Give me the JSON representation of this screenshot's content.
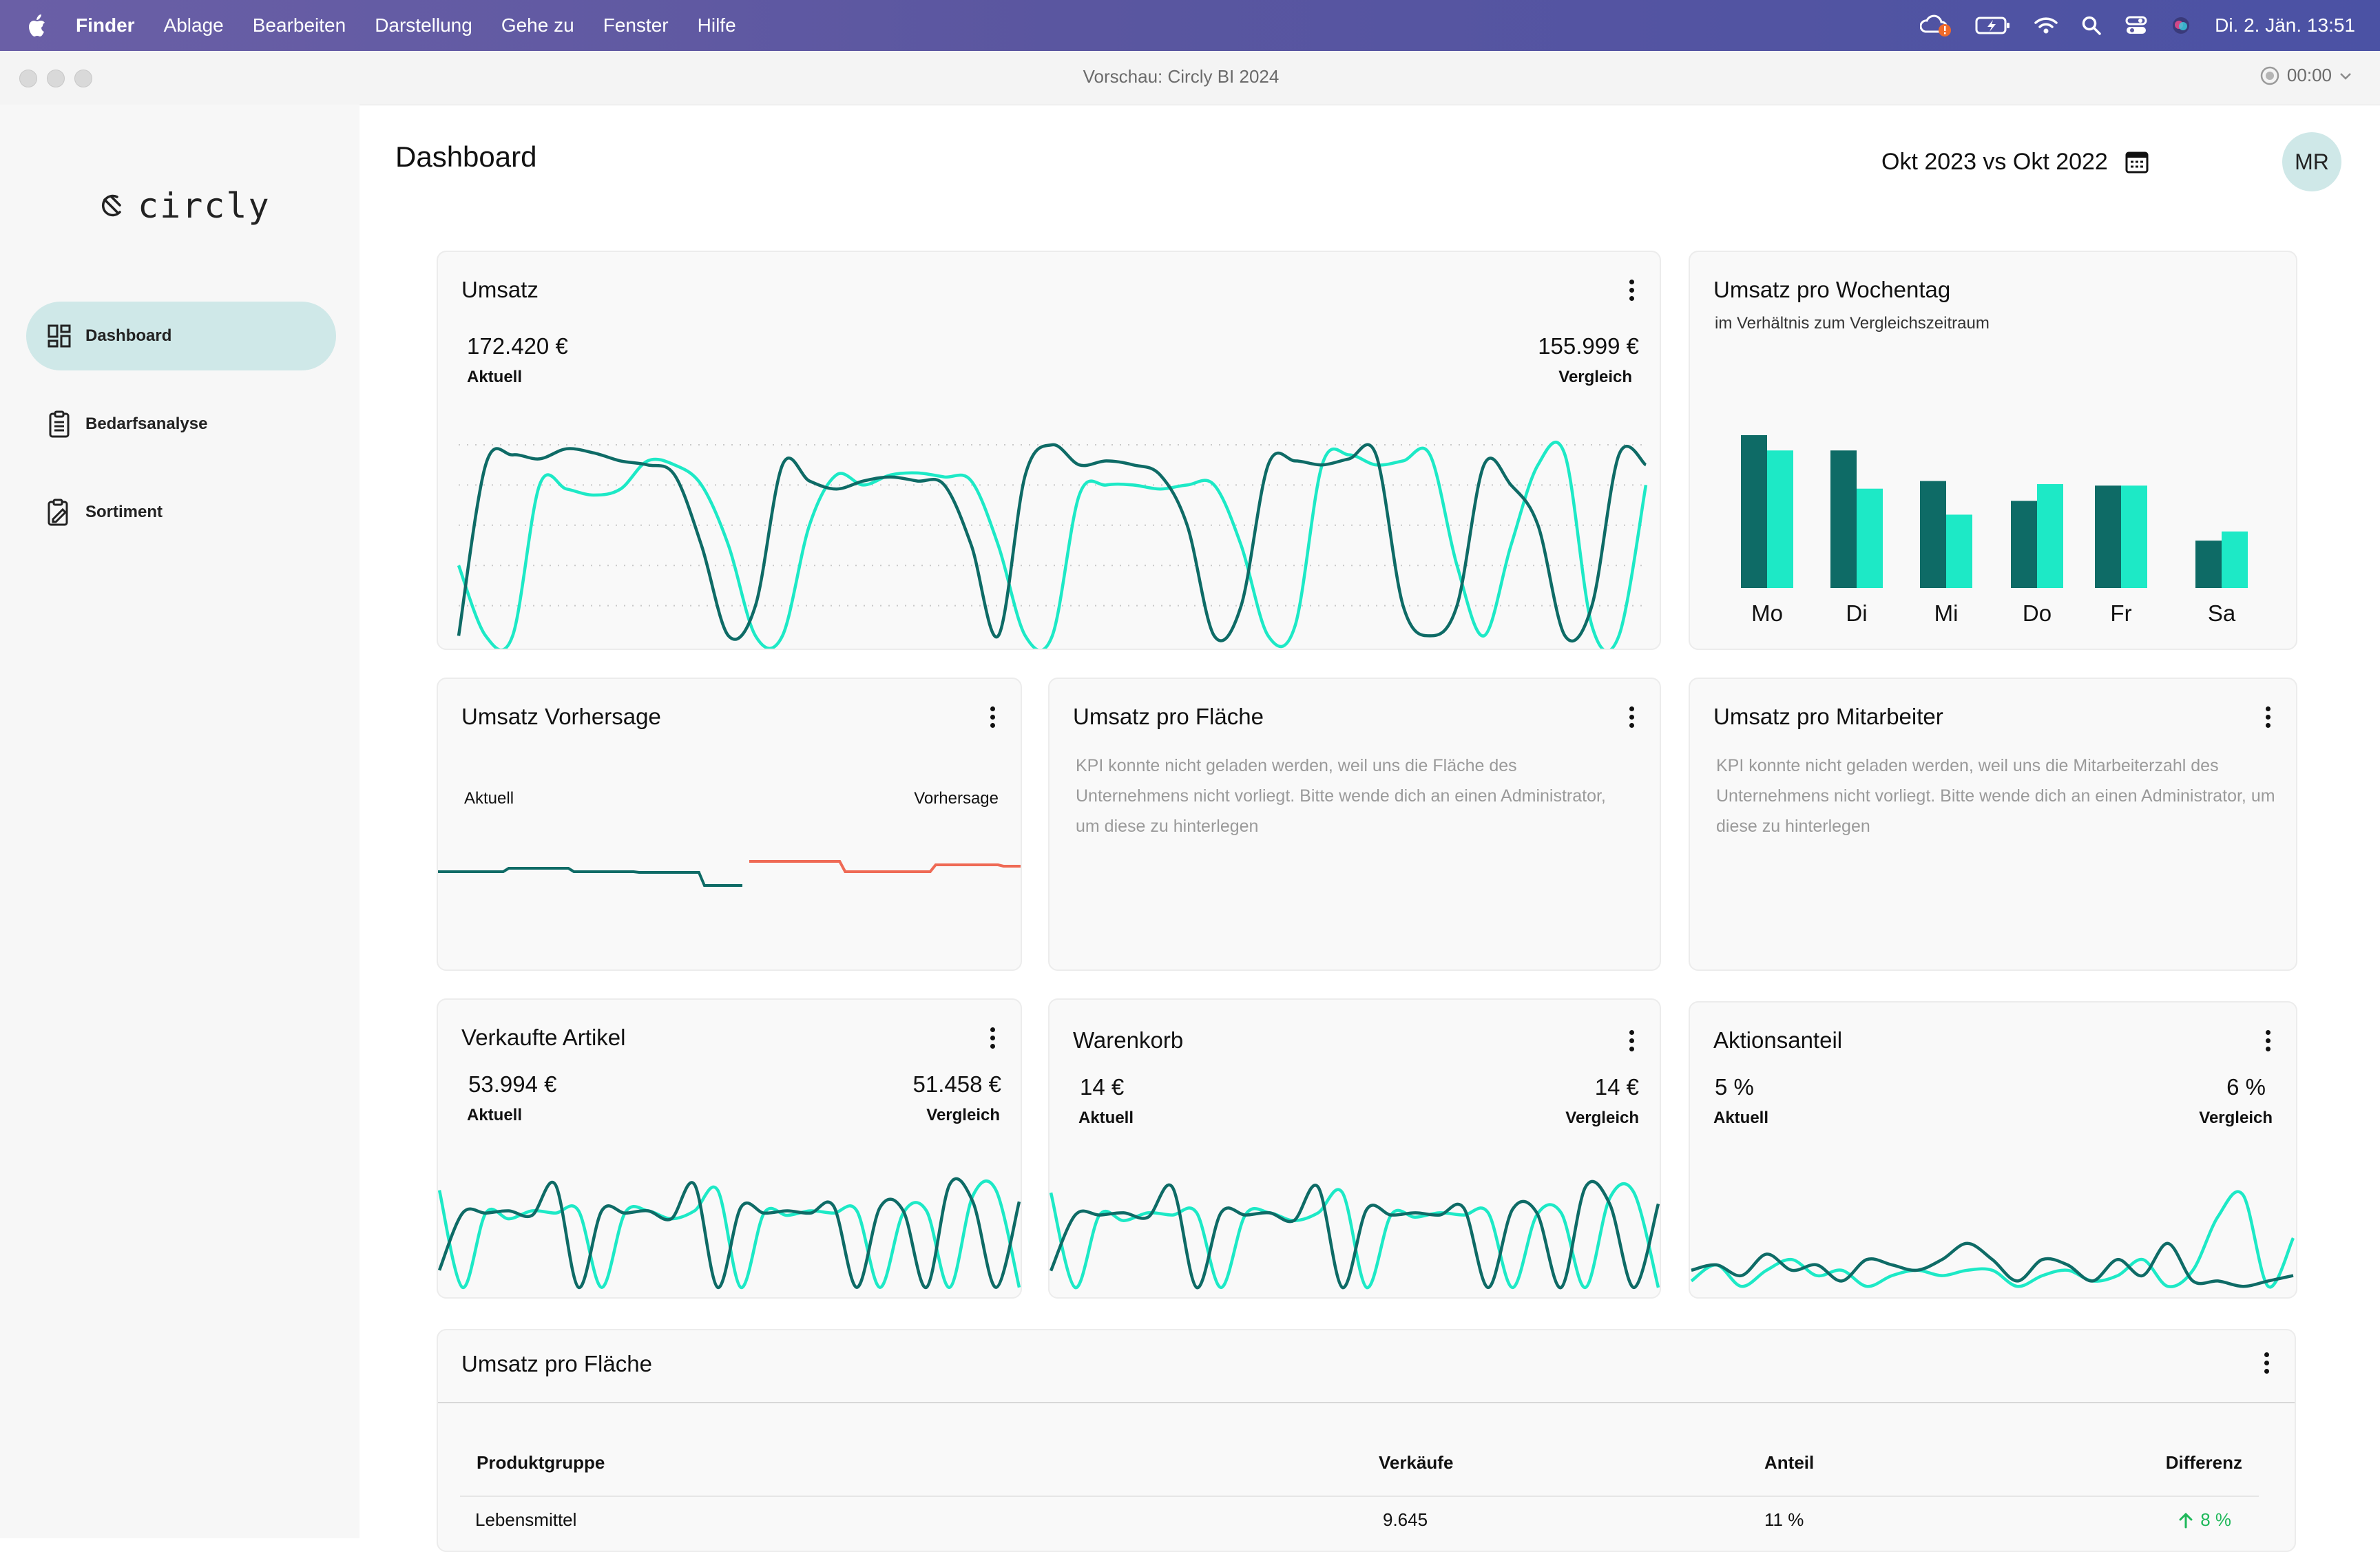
{
  "menubar": {
    "app_name": "Finder",
    "items": [
      "Ablage",
      "Bearbeiten",
      "Darstellung",
      "Gehe zu",
      "Fenster",
      "Hilfe"
    ],
    "clock": "Di. 2. Jän.  13:51"
  },
  "window": {
    "title": "Vorschau: Circly BI 2024",
    "recording_time": "00:00"
  },
  "sidebar": {
    "logo_text": "circly",
    "items": [
      {
        "label": "Dashboard",
        "icon": "dashboard-grid-icon",
        "active": true
      },
      {
        "label": "Bedarfsanalyse",
        "icon": "clipboard-list-icon",
        "active": false
      },
      {
        "label": "Sortiment",
        "icon": "clipboard-edit-icon",
        "active": false
      }
    ]
  },
  "header": {
    "title": "Dashboard",
    "period": "Okt 2023 vs Okt 2022",
    "avatar": "MR"
  },
  "colors": {
    "current": "#0e6b66",
    "comparison": "#1de9c6",
    "forecast": "#ef6a55",
    "positive": "#1fb85a"
  },
  "cards": {
    "umsatz": {
      "title": "Umsatz",
      "current_value": "172.420 €",
      "current_label": "Aktuell",
      "compare_value": "155.999 €",
      "compare_label": "Vergleich"
    },
    "wochentag": {
      "title": "Umsatz pro Wochentag",
      "subtitle": "im Verhältnis zum Vergleichszeitraum"
    },
    "vorhersage": {
      "title": "Umsatz Vorhersage",
      "current_label": "Aktuell",
      "forecast_label": "Vorhersage"
    },
    "flaeche": {
      "title": "Umsatz pro Fläche",
      "message": "KPI konnte nicht geladen werden, weil uns die Fläche des Unternehmens nicht vorliegt. Bitte wende dich an einen Administrator, um diese zu hinterlegen"
    },
    "mitarbeiter": {
      "title": "Umsatz pro Mitarbeiter",
      "message": "KPI konnte nicht geladen werden, weil uns die Mitarbeiterzahl des Unternehmens nicht vorliegt. Bitte wende dich an einen Administrator, um diese zu hinterlegen"
    },
    "artikel": {
      "title": "Verkaufte Artikel",
      "current_value": "53.994 €",
      "current_label": "Aktuell",
      "compare_value": "51.458 €",
      "compare_label": "Vergleich"
    },
    "warenkorb": {
      "title": "Warenkorb",
      "current_value": "14 €",
      "current_label": "Aktuell",
      "compare_value": "14 €",
      "compare_label": "Vergleich"
    },
    "aktion": {
      "title": "Aktionsanteil",
      "current_value": "5 %",
      "current_label": "Aktuell",
      "compare_value": "6 %",
      "compare_label": "Vergleich"
    }
  },
  "table": {
    "title": "Umsatz pro Fläche",
    "columns": [
      "Produktgruppe",
      "Verkäufe",
      "Anteil",
      "Differenz"
    ],
    "rows": [
      {
        "group": "Lebensmittel",
        "sales": "9.645",
        "share": "11 %",
        "diff": "8 %",
        "trend": "up"
      }
    ]
  },
  "chart_data": [
    {
      "type": "line",
      "title": "Umsatz",
      "series": [
        {
          "values": [
            0.05,
            0.9,
            0.95,
            0.93,
            0.98,
            0.96,
            0.92,
            0.9,
            0.85,
            0.5,
            0.05,
            0.2,
            0.9,
            0.82,
            0.78,
            0.82,
            0.84,
            0.82,
            0.8,
            0.5,
            0.05,
            0.85,
            1.0,
            0.9,
            0.92,
            0.9,
            0.85,
            0.6,
            0.05,
            0.2,
            0.9,
            0.92,
            0.9,
            0.93,
            0.95,
            0.2,
            0.05,
            0.2,
            0.9,
            0.8,
            0.6,
            0.05,
            0.2,
            0.95,
            0.9
          ]
        },
        {
          "values": [
            0.4,
            0.05,
            0.05,
            0.8,
            0.78,
            0.75,
            0.78,
            0.92,
            0.9,
            0.8,
            0.5,
            0.05,
            0.05,
            0.6,
            0.85,
            0.8,
            0.85,
            0.86,
            0.84,
            0.82,
            0.5,
            0.05,
            0.05,
            0.75,
            0.8,
            0.8,
            0.78,
            0.8,
            0.8,
            0.5,
            0.05,
            0.1,
            0.9,
            0.95,
            0.9,
            0.92,
            0.95,
            0.4,
            0.05,
            0.5,
            0.9,
            0.95,
            0.1,
            0.05,
            0.8
          ]
        }
      ]
    },
    {
      "type": "bar",
      "title": "Umsatz pro Wochentag",
      "subtitle": "im Verhältnis zum Vergleichszeitraum",
      "categories": [
        "Mo",
        "Di",
        "Mi",
        "Do",
        "Fr",
        "Sa"
      ],
      "series": [
        {
          "values": [
            100,
            90,
            70,
            57,
            67,
            31
          ]
        },
        {
          "values": [
            90,
            65,
            48,
            68,
            67,
            37
          ]
        }
      ]
    },
    {
      "type": "line",
      "title": "Umsatz Vorhersage",
      "series": [
        {
          "name": "Aktuell",
          "values": [
            0.5,
            0.5,
            0.5,
            0.55,
            0.55,
            0.55,
            0.5,
            0.5,
            0.5,
            0.49,
            0.49,
            0.49,
            0.3,
            0.3
          ]
        },
        {
          "name": "Vorhersage",
          "values": [
            0.65,
            0.65,
            0.65,
            0.65,
            0.5,
            0.5,
            0.5,
            0.5,
            0.6,
            0.6,
            0.6,
            0.58
          ]
        }
      ]
    },
    {
      "type": "line",
      "title": "Verkaufte Artikel",
      "series": [
        {
          "values": [
            0.2,
            0.7,
            0.7,
            0.72,
            0.68,
            0.95,
            0.05,
            0.72,
            0.7,
            0.72,
            0.65,
            0.95,
            0.05,
            0.75,
            0.7,
            0.72,
            0.7,
            0.76,
            0.05,
            0.75,
            0.72,
            0.05,
            0.95,
            0.8,
            0.05,
            0.8
          ]
        },
        {
          "values": [
            0.9,
            0.05,
            0.7,
            0.65,
            0.72,
            0.7,
            0.72,
            0.05,
            0.7,
            0.72,
            0.65,
            0.72,
            0.9,
            0.05,
            0.7,
            0.68,
            0.72,
            0.7,
            0.72,
            0.05,
            0.7,
            0.72,
            0.05,
            0.85,
            0.9,
            0.05
          ]
        }
      ]
    },
    {
      "type": "line",
      "title": "Warenkorb",
      "series": [
        {
          "values": [
            0.2,
            0.7,
            0.7,
            0.72,
            0.68,
            0.95,
            0.05,
            0.72,
            0.7,
            0.72,
            0.65,
            0.95,
            0.05,
            0.75,
            0.7,
            0.72,
            0.7,
            0.76,
            0.05,
            0.75,
            0.72,
            0.05,
            0.95,
            0.8,
            0.05,
            0.8
          ]
        },
        {
          "values": [
            0.9,
            0.05,
            0.7,
            0.65,
            0.72,
            0.7,
            0.72,
            0.05,
            0.7,
            0.72,
            0.65,
            0.72,
            0.9,
            0.05,
            0.7,
            0.68,
            0.72,
            0.7,
            0.72,
            0.05,
            0.7,
            0.72,
            0.05,
            0.85,
            0.9,
            0.05
          ]
        }
      ]
    },
    {
      "type": "line",
      "title": "Aktionsanteil",
      "series": [
        {
          "values": [
            0.2,
            0.25,
            0.15,
            0.35,
            0.2,
            0.25,
            0.1,
            0.3,
            0.25,
            0.2,
            0.3,
            0.45,
            0.3,
            0.1,
            0.3,
            0.25,
            0.1,
            0.3,
            0.15,
            0.45,
            0.1,
            0.1,
            0.05,
            0.1,
            0.15
          ]
        },
        {
          "values": [
            0.1,
            0.25,
            0.05,
            0.2,
            0.3,
            0.15,
            0.2,
            0.05,
            0.15,
            0.2,
            0.15,
            0.2,
            0.2,
            0.05,
            0.15,
            0.2,
            0.1,
            0.15,
            0.3,
            0.05,
            0.2,
            0.7,
            0.9,
            0.05,
            0.5
          ]
        }
      ]
    }
  ]
}
